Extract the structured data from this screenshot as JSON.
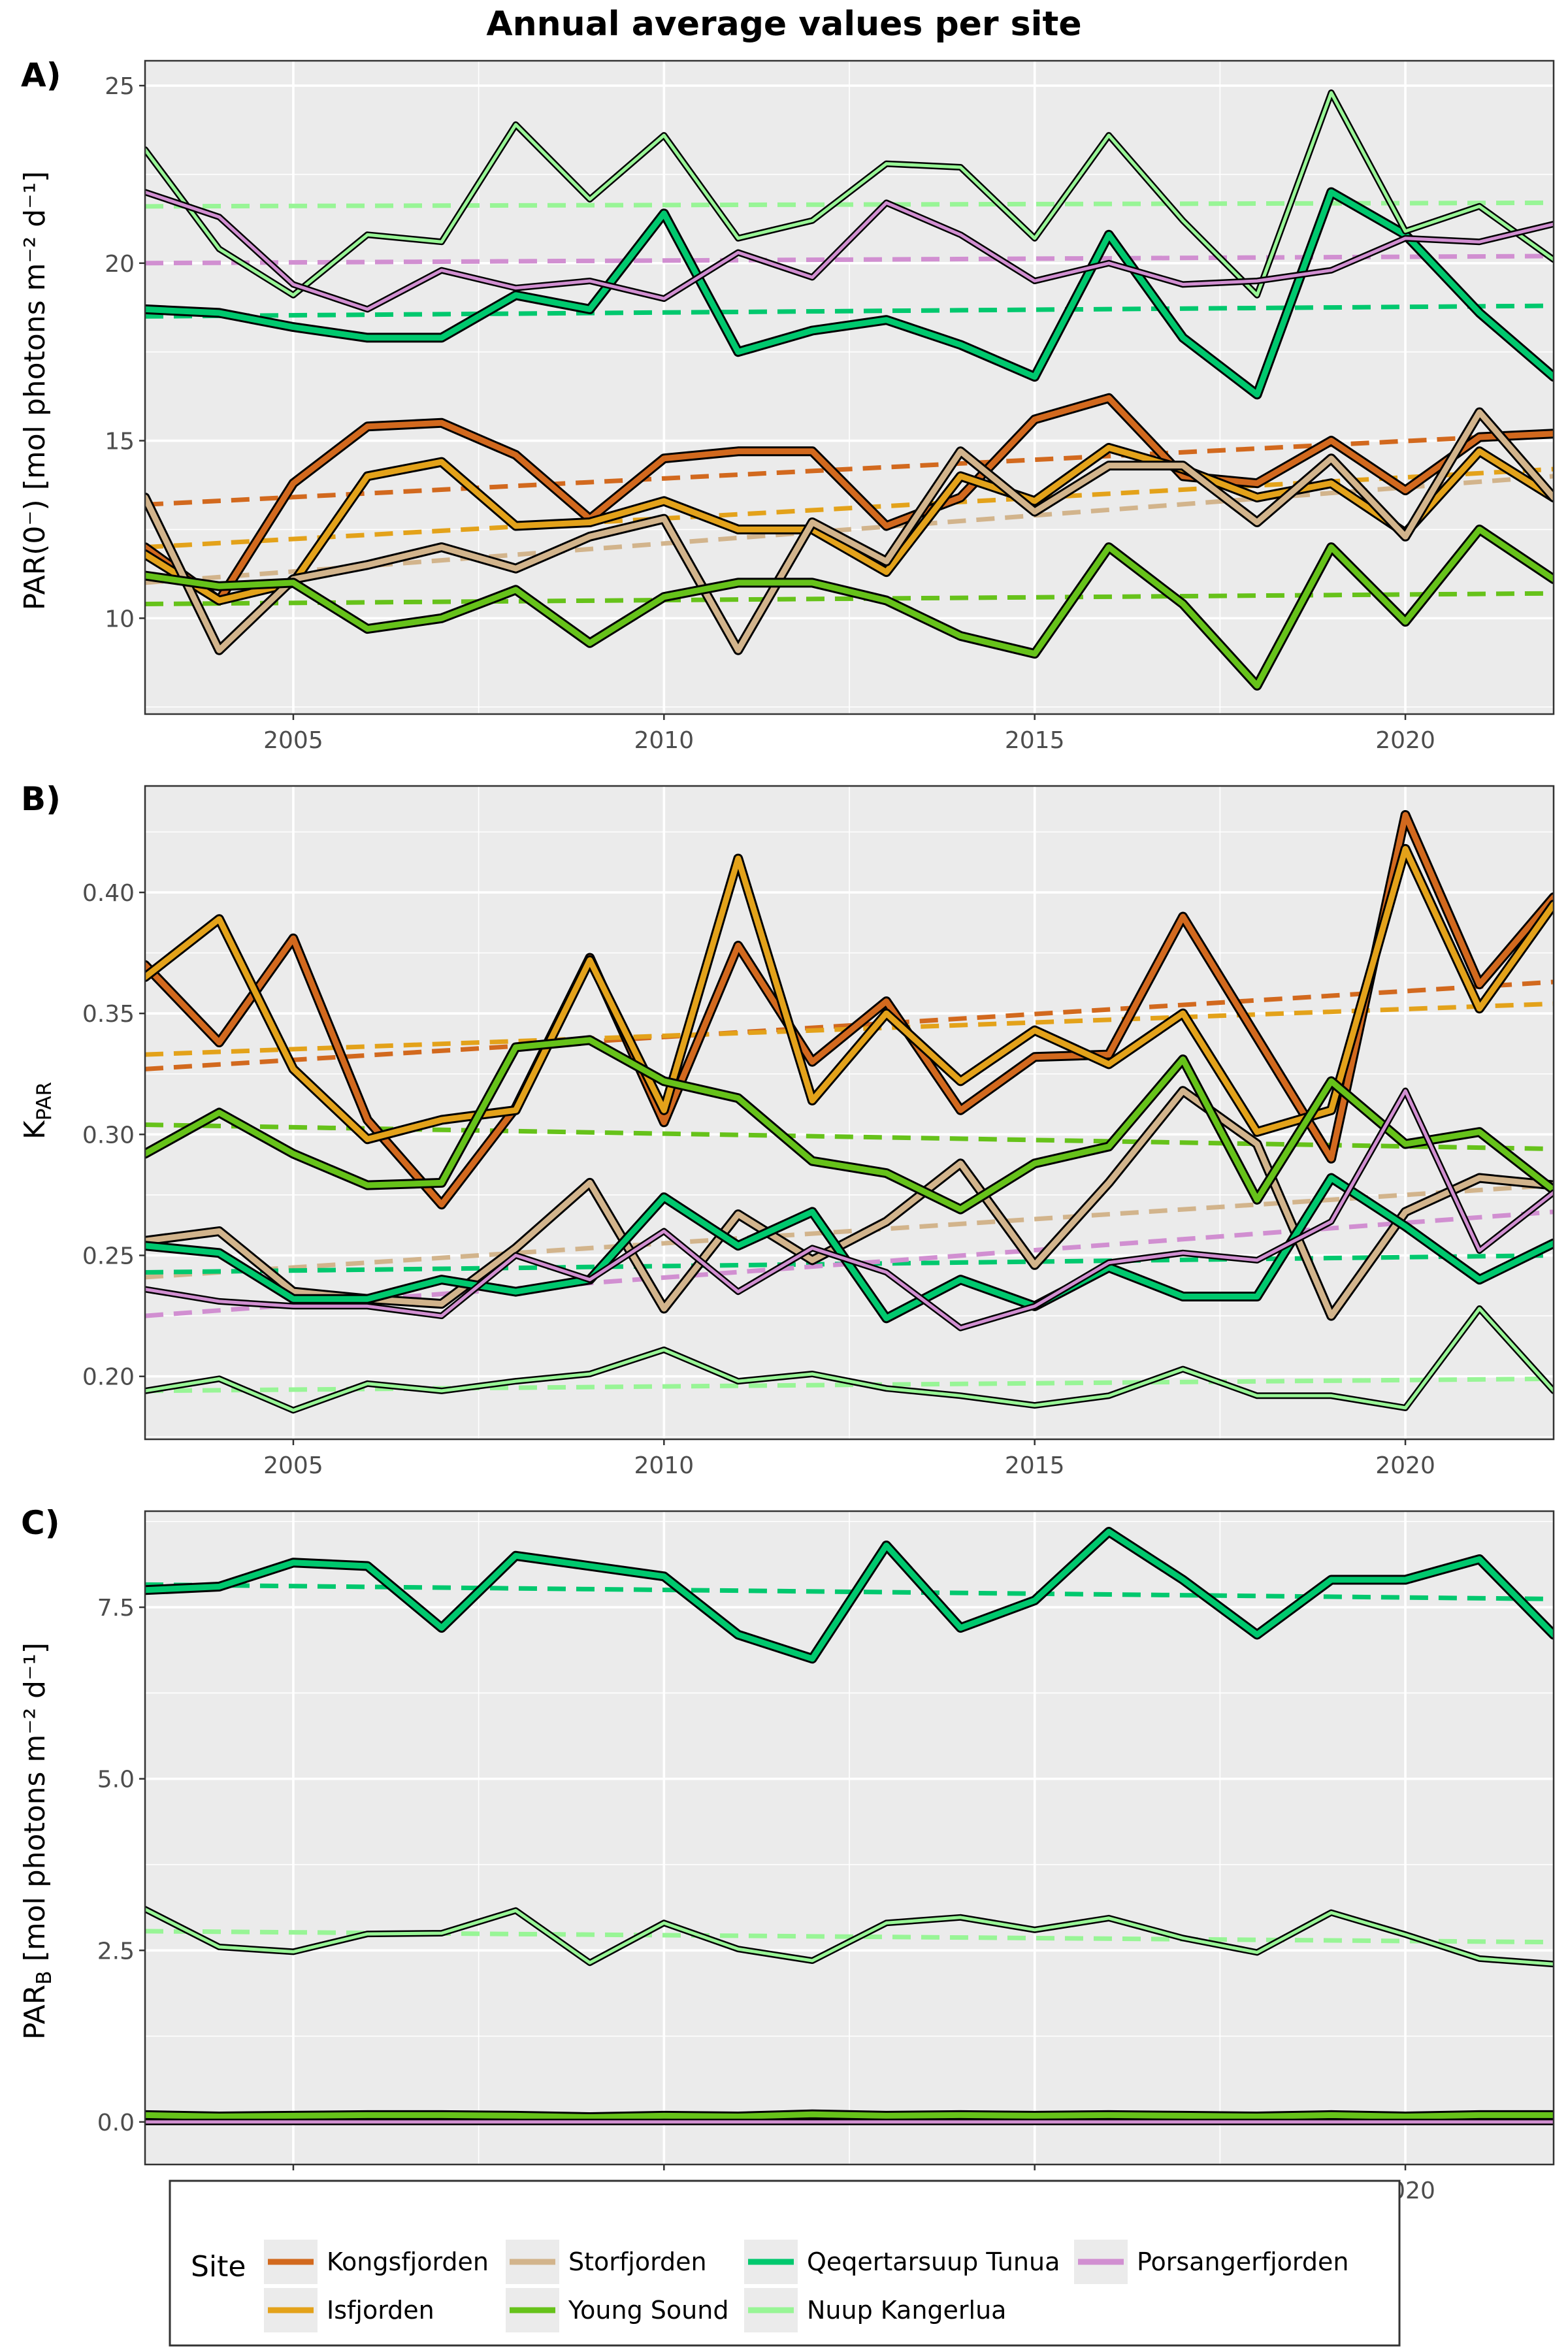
{
  "figure": {
    "title": "Annual average values per site",
    "legend": {
      "title": "Site",
      "position": "bottom"
    }
  },
  "colors": {
    "panel_background": "#EBEBEB",
    "grid": "#FFFFFF"
  },
  "chart_data": [
    {
      "type": "line",
      "panel": "A)",
      "ylabel": "PAR(0⁻) [mol photons m⁻² d⁻¹]",
      "xlim": [
        2003,
        2022
      ],
      "ylim": [
        7.3,
        25.7
      ],
      "x_ticks": [
        2005,
        2010,
        2015,
        2020
      ],
      "y_ticks": [
        10,
        15,
        20,
        25
      ],
      "y_tick_labels": [
        "10",
        "15",
        "20",
        "25"
      ],
      "grid": true,
      "x": [
        2003,
        2004,
        2005,
        2006,
        2007,
        2008,
        2009,
        2010,
        2011,
        2012,
        2013,
        2014,
        2015,
        2016,
        2017,
        2018,
        2019,
        2020,
        2021,
        2022
      ],
      "series": [
        {
          "name": "Kongsfjorden",
          "color": "#D2691E",
          "width": "thick",
          "values": [
            12.0,
            10.5,
            13.8,
            15.4,
            15.5,
            14.6,
            12.8,
            14.5,
            14.7,
            14.7,
            12.6,
            13.4,
            15.6,
            16.2,
            14.0,
            13.8,
            15.0,
            13.6,
            15.1,
            15.2
          ],
          "trend": [
            13.2,
            15.2
          ]
        },
        {
          "name": "Isfjorden",
          "color": "#E3A21A",
          "width": "thick",
          "values": [
            11.8,
            10.5,
            11.0,
            14.0,
            14.4,
            12.6,
            12.7,
            13.3,
            12.5,
            12.5,
            11.3,
            14.0,
            13.3,
            14.8,
            14.2,
            13.4,
            13.8,
            12.4,
            14.7,
            13.4
          ],
          "trend": [
            12.0,
            14.2
          ]
        },
        {
          "name": "Storfjorden",
          "color": "#D2B48C",
          "width": "thick",
          "values": [
            13.4,
            9.1,
            11.1,
            11.5,
            12.0,
            11.4,
            12.3,
            12.8,
            9.1,
            12.7,
            11.6,
            14.7,
            13.0,
            14.3,
            14.3,
            12.7,
            14.5,
            12.3,
            15.8,
            13.4
          ],
          "trend": [
            11.0,
            14.0
          ]
        },
        {
          "name": "Young Sound",
          "color": "#66C21A",
          "width": "thick",
          "values": [
            11.2,
            10.9,
            11.0,
            9.7,
            10.0,
            10.8,
            9.3,
            10.6,
            11.0,
            11.0,
            10.5,
            9.5,
            9.0,
            12.0,
            10.4,
            8.1,
            12.0,
            9.9,
            12.5,
            11.1
          ],
          "trend": [
            10.4,
            10.7
          ]
        },
        {
          "name": "Qeqertarsuup Tunua",
          "color": "#00C86E",
          "width": "thick",
          "values": [
            18.7,
            18.6,
            18.2,
            17.9,
            17.9,
            19.1,
            18.7,
            21.4,
            17.5,
            18.1,
            18.4,
            17.7,
            16.8,
            20.8,
            17.9,
            16.3,
            22.0,
            20.8,
            18.6,
            16.8
          ],
          "trend": [
            18.5,
            18.8
          ]
        },
        {
          "name": "Nuup Kangerlua",
          "color": "#98F596",
          "width": "thin",
          "values": [
            23.2,
            20.4,
            19.1,
            20.8,
            20.6,
            23.9,
            21.8,
            23.6,
            20.7,
            21.2,
            22.8,
            22.7,
            20.7,
            23.6,
            21.2,
            19.1,
            24.8,
            20.9,
            21.6,
            20.1
          ],
          "trend": [
            21.6,
            21.7
          ]
        },
        {
          "name": "Porsangerfjorden",
          "color": "#D18FD1",
          "width": "thin",
          "values": [
            22.0,
            21.3,
            19.4,
            18.7,
            19.8,
            19.3,
            19.5,
            19.0,
            20.3,
            19.6,
            21.7,
            20.8,
            19.5,
            20.0,
            19.4,
            19.5,
            19.8,
            20.7,
            20.6,
            21.1
          ],
          "trend": [
            20.0,
            20.2
          ]
        }
      ]
    },
    {
      "type": "line",
      "panel": "B)",
      "ylabel": "K_PAR",
      "xlim": [
        2003,
        2022
      ],
      "ylim": [
        0.174,
        0.444
      ],
      "x_ticks": [
        2005,
        2010,
        2015,
        2020
      ],
      "y_ticks": [
        0.2,
        0.25,
        0.3,
        0.35,
        0.4
      ],
      "y_tick_labels": [
        "0.20",
        "0.25",
        "0.30",
        "0.35",
        "0.40"
      ],
      "grid": true,
      "x": [
        2003,
        2004,
        2005,
        2006,
        2007,
        2008,
        2009,
        2010,
        2011,
        2012,
        2013,
        2014,
        2015,
        2016,
        2017,
        2018,
        2019,
        2020,
        2021,
        2022
      ],
      "series": [
        {
          "name": "Kongsfjorden",
          "color": "#D2691E",
          "width": "thick",
          "values": [
            0.37,
            0.338,
            0.381,
            0.306,
            0.271,
            0.311,
            0.373,
            0.305,
            0.378,
            0.33,
            0.355,
            0.31,
            0.332,
            0.333,
            0.39,
            0.34,
            0.29,
            0.432,
            0.362,
            0.398
          ],
          "trend": [
            0.327,
            0.363
          ]
        },
        {
          "name": "Isfjorden",
          "color": "#E3A21A",
          "width": "thick",
          "values": [
            0.365,
            0.389,
            0.327,
            0.298,
            0.306,
            0.31,
            0.372,
            0.31,
            0.414,
            0.314,
            0.35,
            0.322,
            0.343,
            0.329,
            0.35,
            0.301,
            0.31,
            0.418,
            0.352,
            0.395
          ],
          "trend": [
            0.333,
            0.354
          ]
        },
        {
          "name": "Storfjorden",
          "color": "#D2B48C",
          "width": "thick",
          "values": [
            0.256,
            0.26,
            0.235,
            0.232,
            0.23,
            0.253,
            0.28,
            0.228,
            0.267,
            0.248,
            0.264,
            0.288,
            0.246,
            0.28,
            0.318,
            0.296,
            0.225,
            0.268,
            0.282,
            0.279
          ],
          "trend": [
            0.241,
            0.279
          ]
        },
        {
          "name": "Young Sound",
          "color": "#66C21A",
          "width": "thick",
          "values": [
            0.292,
            0.309,
            0.292,
            0.279,
            0.28,
            0.336,
            0.339,
            0.322,
            0.315,
            0.289,
            0.284,
            0.269,
            0.288,
            0.295,
            0.331,
            0.273,
            0.322,
            0.296,
            0.301,
            0.277
          ],
          "trend": [
            0.304,
            0.294
          ]
        },
        {
          "name": "Qeqertarsuup Tunua",
          "color": "#00C86E",
          "width": "thick",
          "values": [
            0.254,
            0.251,
            0.232,
            0.232,
            0.24,
            0.235,
            0.24,
            0.274,
            0.254,
            0.268,
            0.224,
            0.24,
            0.229,
            0.245,
            0.233,
            0.233,
            0.282,
            0.262,
            0.24,
            0.255
          ],
          "trend": [
            0.243,
            0.25
          ]
        },
        {
          "name": "Nuup Kangerlua",
          "color": "#98F596",
          "width": "thin",
          "values": [
            0.194,
            0.199,
            0.186,
            0.197,
            0.194,
            0.198,
            0.201,
            0.211,
            0.198,
            0.201,
            0.195,
            0.192,
            0.188,
            0.192,
            0.203,
            0.192,
            0.192,
            0.187,
            0.228,
            0.194
          ],
          "trend": [
            0.194,
            0.199
          ]
        },
        {
          "name": "Porsangerfjorden",
          "color": "#D18FD1",
          "width": "thin",
          "values": [
            0.236,
            0.231,
            0.229,
            0.229,
            0.225,
            0.25,
            0.24,
            0.26,
            0.235,
            0.253,
            0.243,
            0.22,
            0.229,
            0.247,
            0.251,
            0.248,
            0.264,
            0.318,
            0.252,
            0.276
          ],
          "trend": [
            0.225,
            0.268
          ]
        }
      ]
    },
    {
      "type": "line",
      "panel": "C)",
      "ylabel": "PAR_B [mol photons m⁻² d⁻¹]",
      "xlim": [
        2003,
        2022
      ],
      "ylim": [
        -0.62,
        8.9
      ],
      "x_ticks": [
        2005,
        2010,
        2015,
        2020
      ],
      "y_ticks": [
        0,
        2.5,
        5,
        7.5
      ],
      "y_tick_labels": [
        "0.0",
        "2.5",
        "5.0",
        "7.5"
      ],
      "grid": true,
      "x": [
        2003,
        2004,
        2005,
        2006,
        2007,
        2008,
        2009,
        2010,
        2011,
        2012,
        2013,
        2014,
        2015,
        2016,
        2017,
        2018,
        2019,
        2020,
        2021,
        2022
      ],
      "series": [
        {
          "name": "Kongsfjorden",
          "color": "#D2691E",
          "width": "thick",
          "values": [
            0.06,
            0.05,
            0.06,
            0.07,
            0.07,
            0.06,
            0.05,
            0.06,
            0.05,
            0.06,
            0.06,
            0.06,
            0.06,
            0.06,
            0.06,
            0.05,
            0.06,
            0.05,
            0.06,
            0.06
          ],
          "trend": [
            0.06,
            0.06
          ]
        },
        {
          "name": "Isfjorden",
          "color": "#E3A21A",
          "width": "thick",
          "values": [
            0.07,
            0.06,
            0.07,
            0.08,
            0.08,
            0.07,
            0.06,
            0.07,
            0.06,
            0.07,
            0.07,
            0.07,
            0.07,
            0.07,
            0.07,
            0.06,
            0.07,
            0.06,
            0.07,
            0.07
          ],
          "trend": [
            0.07,
            0.07
          ]
        },
        {
          "name": "Storfjorden",
          "color": "#D2B48C",
          "width": "thick",
          "values": [
            0.06,
            0.05,
            0.06,
            0.06,
            0.06,
            0.06,
            0.05,
            0.06,
            0.05,
            0.06,
            0.06,
            0.06,
            0.06,
            0.06,
            0.06,
            0.05,
            0.06,
            0.05,
            0.06,
            0.06
          ],
          "trend": [
            0.06,
            0.06
          ]
        },
        {
          "name": "Young Sound",
          "color": "#66C21A",
          "width": "thick",
          "values": [
            0.1,
            0.08,
            0.09,
            0.1,
            0.1,
            0.09,
            0.07,
            0.09,
            0.08,
            0.11,
            0.09,
            0.1,
            0.09,
            0.1,
            0.09,
            0.08,
            0.1,
            0.08,
            0.1,
            0.1
          ],
          "trend": [
            0.09,
            0.09
          ]
        },
        {
          "name": "Qeqertarsuup Tunua",
          "color": "#00C86E",
          "width": "thick",
          "values": [
            7.75,
            7.8,
            8.15,
            8.1,
            7.2,
            8.25,
            8.1,
            7.95,
            7.1,
            6.75,
            8.4,
            7.2,
            7.6,
            8.6,
            7.9,
            7.1,
            7.9,
            7.9,
            8.2,
            7.1
          ],
          "trend": [
            7.83,
            7.62
          ]
        },
        {
          "name": "Nuup Kangerlua",
          "color": "#98F596",
          "width": "thin",
          "values": [
            3.1,
            2.55,
            2.48,
            2.74,
            2.75,
            3.08,
            2.32,
            2.9,
            2.52,
            2.35,
            2.9,
            2.98,
            2.8,
            2.97,
            2.68,
            2.47,
            3.05,
            2.73,
            2.38,
            2.3
          ],
          "trend": [
            2.78,
            2.62
          ]
        },
        {
          "name": "Porsangerfjorden",
          "color": "#D18FD1",
          "width": "thin",
          "values": [
            0.0,
            0.0,
            0.0,
            0.0,
            0.0,
            0.0,
            0.0,
            0.0,
            0.0,
            0.0,
            0.0,
            0.0,
            0.0,
            0.0,
            0.0,
            0.0,
            0.0,
            0.0,
            0.0,
            0.0
          ],
          "trend": [
            0.0,
            0.0
          ]
        }
      ]
    }
  ]
}
